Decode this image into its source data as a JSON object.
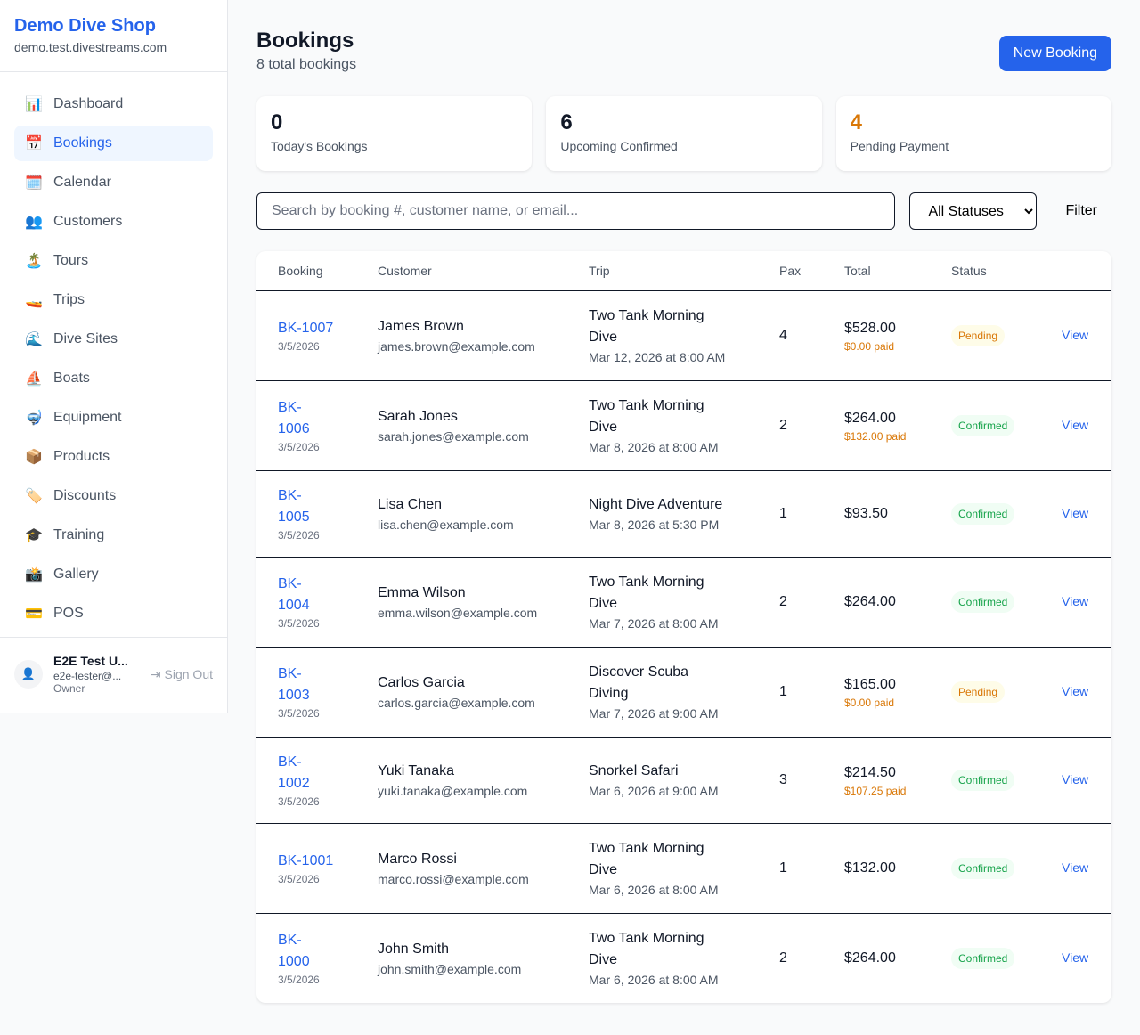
{
  "shop": {
    "name": "Demo Dive Shop",
    "domain": "demo.test.divestreams.com"
  },
  "nav": [
    {
      "icon": "📊",
      "label": "Dashboard",
      "name": "chart-icon"
    },
    {
      "icon": "📅",
      "label": "Bookings",
      "name": "calendar-icon",
      "active": true
    },
    {
      "icon": "🗓️",
      "label": "Calendar",
      "name": "spiral-calendar-icon"
    },
    {
      "icon": "👥",
      "label": "Customers",
      "name": "users-icon"
    },
    {
      "icon": "🏝️",
      "label": "Tours",
      "name": "island-icon"
    },
    {
      "icon": "🚤",
      "label": "Trips",
      "name": "boat-icon"
    },
    {
      "icon": "🌊",
      "label": "Dive Sites",
      "name": "wave-icon"
    },
    {
      "icon": "⛵",
      "label": "Boats",
      "name": "sailboat-icon"
    },
    {
      "icon": "🤿",
      "label": "Equipment",
      "name": "diving-mask-icon"
    },
    {
      "icon": "📦",
      "label": "Products",
      "name": "package-icon"
    },
    {
      "icon": "🏷️",
      "label": "Discounts",
      "name": "tag-icon"
    },
    {
      "icon": "🎓",
      "label": "Training",
      "name": "graduation-cap-icon"
    },
    {
      "icon": "📸",
      "label": "Gallery",
      "name": "camera-icon"
    },
    {
      "icon": "💳",
      "label": "POS",
      "name": "credit-card-icon"
    }
  ],
  "user": {
    "name": "E2E Test U...",
    "email": "e2e-tester@...",
    "role": "Owner",
    "sign_out": "Sign Out"
  },
  "header": {
    "title": "Bookings",
    "subtitle": "8 total bookings",
    "new_button": "New Booking"
  },
  "stats": [
    {
      "value": "0",
      "label": "Today's Bookings",
      "color": "#111827"
    },
    {
      "value": "6",
      "label": "Upcoming Confirmed",
      "color": "#111827"
    },
    {
      "value": "4",
      "label": "Pending Payment",
      "color": "#d97706"
    }
  ],
  "filters": {
    "search_placeholder": "Search by booking #, customer name, or email...",
    "status_selected": "All Statuses",
    "filter_button": "Filter"
  },
  "table": {
    "columns": [
      "Booking",
      "Customer",
      "Trip",
      "Pax",
      "Total",
      "Status",
      ""
    ],
    "rows": [
      {
        "id": "BK-1007",
        "date": "3/5/2026",
        "customer": "James Brown",
        "email": "james.brown@example.com",
        "trip": "Two Tank Morning Dive",
        "when": "Mar 12, 2026 at 8:00 AM",
        "pax": "4",
        "total": "$528.00",
        "paid": "$0.00 paid",
        "status": "Pending",
        "view": "View"
      },
      {
        "id": "BK-1006",
        "date": "3/5/2026",
        "customer": "Sarah Jones",
        "email": "sarah.jones@example.com",
        "trip": "Two Tank Morning Dive",
        "when": "Mar 8, 2026 at 8:00 AM",
        "pax": "2",
        "total": "$264.00",
        "paid": "$132.00 paid",
        "status": "Confirmed",
        "view": "View"
      },
      {
        "id": "BK-1005",
        "date": "3/5/2026",
        "customer": "Lisa Chen",
        "email": "lisa.chen@example.com",
        "trip": "Night Dive Adventure",
        "when": "Mar 8, 2026 at 5:30 PM",
        "pax": "1",
        "total": "$93.50",
        "paid": null,
        "status": "Confirmed",
        "view": "View"
      },
      {
        "id": "BK-1004",
        "date": "3/5/2026",
        "customer": "Emma Wilson",
        "email": "emma.wilson@example.com",
        "trip": "Two Tank Morning Dive",
        "when": "Mar 7, 2026 at 8:00 AM",
        "pax": "2",
        "total": "$264.00",
        "paid": null,
        "status": "Confirmed",
        "view": "View"
      },
      {
        "id": "BK-1003",
        "date": "3/5/2026",
        "customer": "Carlos Garcia",
        "email": "carlos.garcia@example.com",
        "trip": "Discover Scuba Diving",
        "when": "Mar 7, 2026 at 9:00 AM",
        "pax": "1",
        "total": "$165.00",
        "paid": "$0.00 paid",
        "status": "Pending",
        "view": "View"
      },
      {
        "id": "BK-1002",
        "date": "3/5/2026",
        "customer": "Yuki Tanaka",
        "email": "yuki.tanaka@example.com",
        "trip": "Snorkel Safari",
        "when": "Mar 6, 2026 at 9:00 AM",
        "pax": "3",
        "total": "$214.50",
        "paid": "$107.25 paid",
        "status": "Confirmed",
        "view": "View"
      },
      {
        "id": "BK-1001",
        "date": "3/5/2026",
        "customer": "Marco Rossi",
        "email": "marco.rossi@example.com",
        "trip": "Two Tank Morning Dive",
        "when": "Mar 6, 2026 at 8:00 AM",
        "pax": "1",
        "total": "$132.00",
        "paid": null,
        "status": "Confirmed",
        "view": "View"
      },
      {
        "id": "BK-1000",
        "date": "3/5/2026",
        "customer": "John Smith",
        "email": "john.smith@example.com",
        "trip": "Two Tank Morning Dive",
        "when": "Mar 6, 2026 at 8:00 AM",
        "pax": "2",
        "total": "$264.00",
        "paid": null,
        "status": "Confirmed",
        "view": "View"
      }
    ]
  },
  "status_colors": {
    "Pending": {
      "bg": "#fefce8",
      "fg": "#d97706"
    },
    "Confirmed": {
      "bg": "#f0fdf4",
      "fg": "#16a34a"
    }
  }
}
